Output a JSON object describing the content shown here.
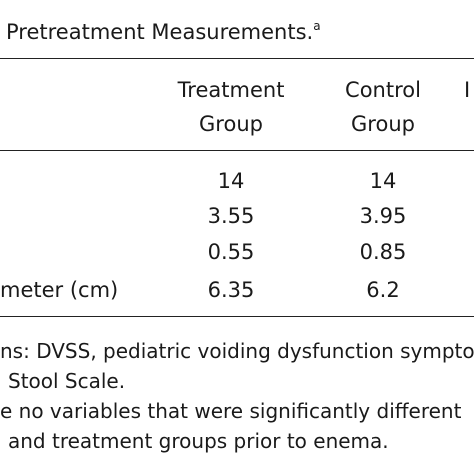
{
  "table": {
    "title": "Pretreatment Measurements.",
    "title_note": "a",
    "headers": [
      [
        "Treatment",
        "Group"
      ],
      [
        "Control",
        "Group"
      ],
      [
        "I"
      ]
    ],
    "rows": [
      {
        "values": [
          "14",
          "14"
        ]
      },
      {
        "values": [
          "3.55",
          "3.95"
        ]
      },
      {
        "values": [
          "0.55",
          "0.85"
        ]
      },
      {
        "label": "meter (cm)",
        "values": [
          "6.35",
          "6.2"
        ]
      }
    ],
    "footnotes": [
      {
        "text": "ns: DVSS, pediatric voiding dysfunction sympto",
        "indent": 0
      },
      {
        "text": "Stool Scale.",
        "indent": 1
      },
      {
        "text": "e no variables that were significantly different",
        "indent": 0
      },
      {
        "text": "and treatment groups prior to enema.",
        "indent": 1
      }
    ]
  }
}
